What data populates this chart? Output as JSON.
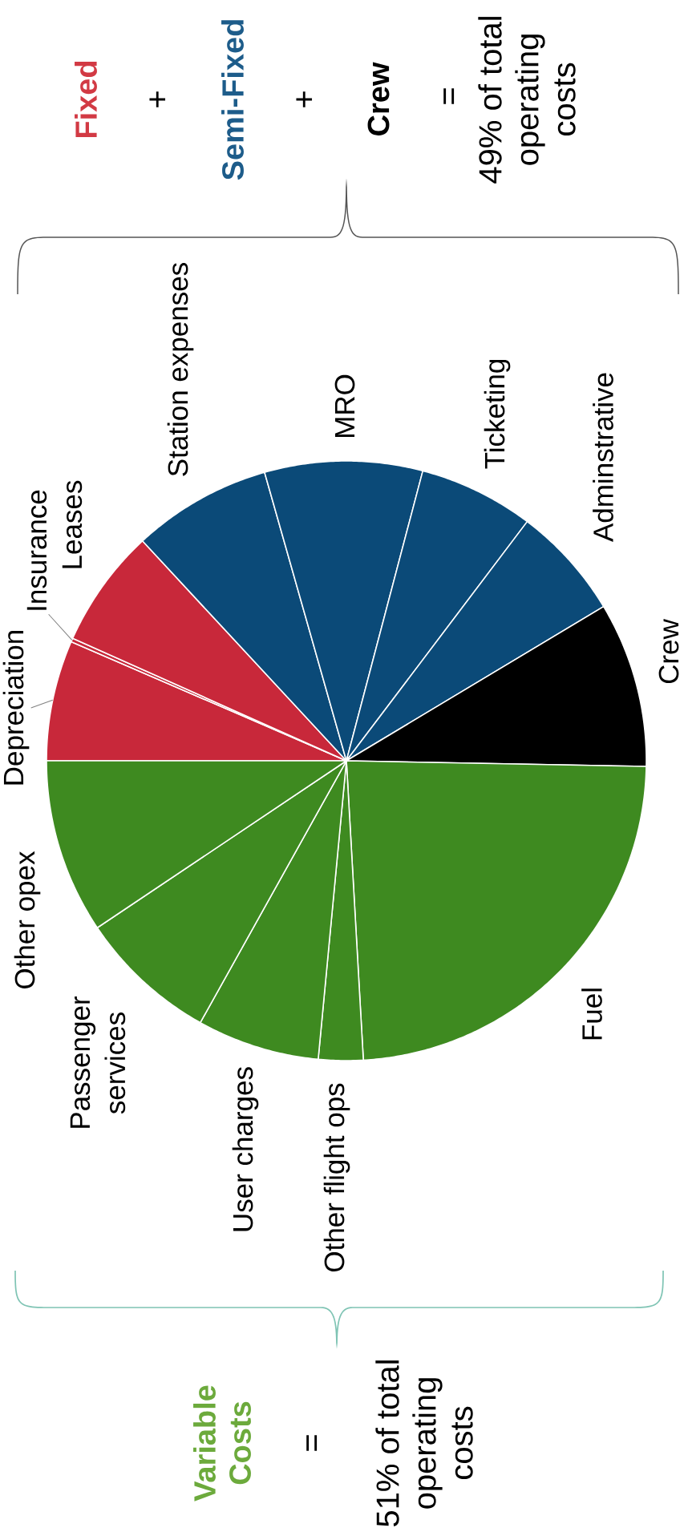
{
  "chart_data": {
    "type": "pie",
    "categories": [
      "Depreciation",
      "Insurance",
      "Leases",
      "Station expenses",
      "MRO",
      "Ticketing",
      "Adminstrative",
      "Crew",
      "Fuel",
      "Other flight ops",
      "User charges",
      "Passenger services",
      "Other opex"
    ],
    "values": [
      6.5,
      0.2,
      6.4,
      7.5,
      8.5,
      6.2,
      6.1,
      8.9,
      23.8,
      2.4,
      6.6,
      7.5,
      9.4
    ],
    "colors": [
      "#c8283a",
      "#c8283a",
      "#c8283a",
      "#0b4a78",
      "#0b4a78",
      "#0b4a78",
      "#0b4a78",
      "#000000",
      "#3e8a20",
      "#3e8a20",
      "#3e8a20",
      "#3e8a20",
      "#3e8a20"
    ],
    "annotations": [
      "Fixed",
      "+",
      "Semi-Fixed",
      "+",
      "Crew",
      "=",
      "49% of total operating costs",
      "Variable Costs",
      "=",
      "51% of total operating costs"
    ]
  }
}
